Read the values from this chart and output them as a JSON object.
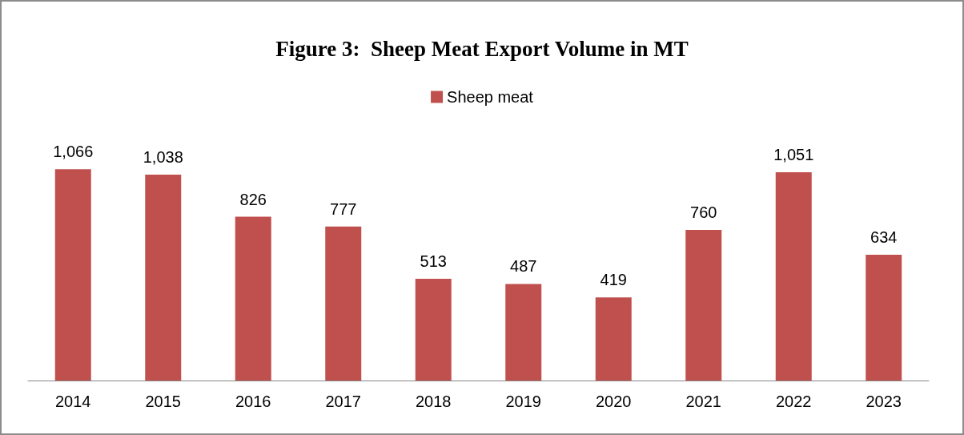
{
  "chart_data": {
    "type": "bar",
    "title": "Figure 3:  Sheep Meat Export Volume in MT",
    "categories": [
      "2014",
      "2015",
      "2016",
      "2017",
      "2018",
      "2019",
      "2020",
      "2021",
      "2022",
      "2023"
    ],
    "series": [
      {
        "name": "Sheep meat",
        "color": "#c0504d",
        "values": [
          1066,
          1038,
          826,
          777,
          513,
          487,
          419,
          760,
          1051,
          634
        ],
        "value_labels": [
          "1,066",
          "1,038",
          "826",
          "777",
          "513",
          "487",
          "419",
          "760",
          "1,051",
          "634"
        ]
      }
    ],
    "legend": "top"
  }
}
